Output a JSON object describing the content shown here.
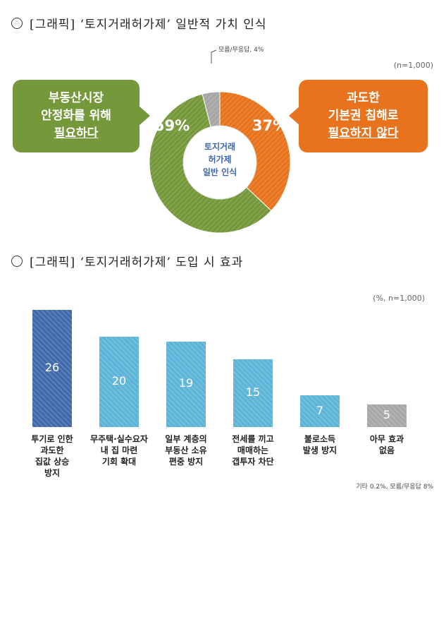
{
  "section1": {
    "title": "[그래픽] ‘토지거래허가제’ 일반적 가치 인식",
    "sample_note": "(n=1,000)",
    "left_bubble": {
      "line1": "부동산시장",
      "line2": "안정화를 위해",
      "line3": "필요하다"
    },
    "right_bubble": {
      "line1": "과도한",
      "line2": "기본권 침해로",
      "line3": "필요하지 않다"
    },
    "center_label": {
      "line1": "토지거래",
      "line2": "허가제",
      "line3": "일반 인식"
    },
    "small_label": "모름/무응답, 4%",
    "colors": {
      "necessary": "#74983a",
      "unnecessary": "#e8731c",
      "unknown": "#a6a6a6"
    }
  },
  "chart_data": [
    {
      "type": "pie",
      "title": "[그래픽] ‘토지거래허가제’ 일반적 가치 인식",
      "slices": [
        {
          "label": "과도한 기본권 침해로 필요하지 않다",
          "value": 37,
          "display": "37%",
          "color": "#e8731c"
        },
        {
          "label": "부동산시장 안정화를 위해 필요하다",
          "value": 59,
          "display": "59%",
          "color": "#74983a"
        },
        {
          "label": "모름/무응답",
          "value": 4,
          "display": "4%",
          "color": "#a6a6a6"
        }
      ]
    },
    {
      "type": "bar",
      "title": "[그래픽] ‘토지거래허가제’ 도입 시 효과",
      "categories": [
        "투기로 인한\n과도한\n집값 상승\n방지",
        "무주택·실수요자\n내 집 마련\n기회 확대",
        "일부 계층의\n부동산 소유\n편중 방지",
        "전세를 끼고\n매매하는\n갭투자 차단",
        "불로소득\n발생 방지",
        "아무 효과\n없음"
      ],
      "values": [
        26,
        20,
        19,
        15,
        7,
        5
      ],
      "colors": [
        "#3e68a8",
        "#5bb3d8",
        "#5bb3d8",
        "#5bb3d8",
        "#5bb3d8",
        "#a6a6a6"
      ],
      "ylim": [
        0,
        26
      ]
    }
  ],
  "section2": {
    "title": "[그래픽] ‘토지거래허가제’ 도입 시 효과",
    "sample_note": "(%, n=1,000)",
    "footnote": "기타 0.2%, 모름/무응답 8%"
  }
}
